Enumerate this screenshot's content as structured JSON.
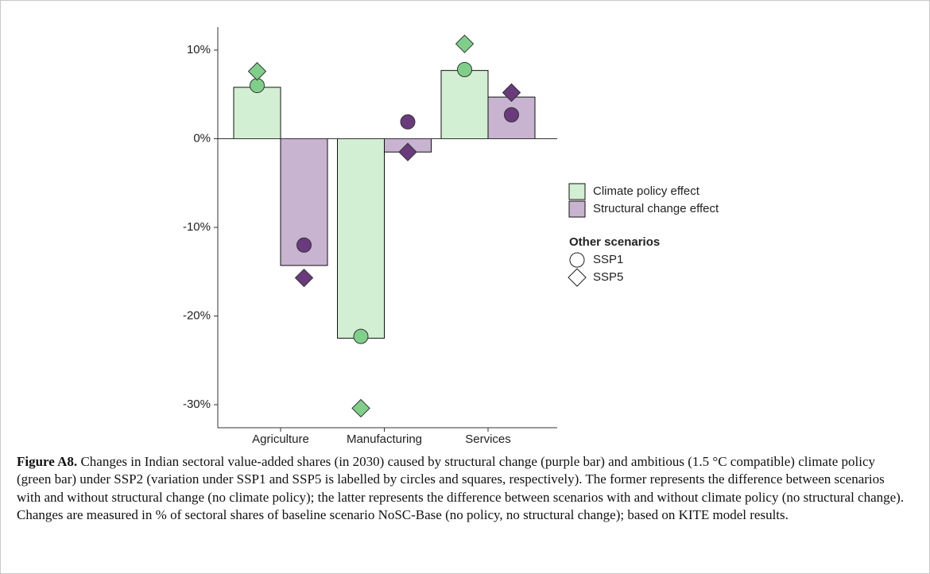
{
  "chart_data": {
    "type": "bar",
    "categories": [
      "Agriculture",
      "Manufacturing",
      "Services"
    ],
    "series": [
      {
        "name": "Climate policy effect",
        "color": "#d3efd3",
        "marker_color": "#7fcf8a",
        "values": [
          5.8,
          -22.5,
          7.7
        ]
      },
      {
        "name": "Structural change effect",
        "color": "#c8b3d1",
        "marker_color": "#6a3a7c",
        "values": [
          -14.3,
          -1.5,
          4.7
        ]
      }
    ],
    "scenarios": [
      {
        "name": "SSP1",
        "marker": "circle",
        "values": [
          [
            6.0,
            -22.3,
            7.8
          ],
          [
            -12.0,
            1.9,
            2.7
          ]
        ]
      },
      {
        "name": "SSP5",
        "marker": "diamond",
        "values": [
          [
            7.6,
            -30.4,
            10.7
          ],
          [
            -15.7,
            -1.5,
            5.2
          ]
        ]
      }
    ],
    "scenario_legend_title": "Other scenarios",
    "ylim": [
      -32.6,
      12.6
    ],
    "yticks": [
      {
        "value": 10,
        "label": "10%"
      },
      {
        "value": 0,
        "label": "0%"
      },
      {
        "value": -10,
        "label": "-10%"
      },
      {
        "value": -20,
        "label": "-20%"
      },
      {
        "value": -30,
        "label": "-30%"
      }
    ],
    "grid": false
  },
  "caption": {
    "label": "Figure A8.",
    "text": "Changes in Indian sectoral value-added shares (in 2030) caused by structural change (purple bar) and ambitious (1.5 °C compatible) climate policy (green bar) under SSP2 (variation under SSP1 and SSP5 is labelled by circles and squares, respectively). The former represents the difference between scenarios with and without structural change (no climate policy); the latter represents the difference between scenarios with and without climate policy (no structural change). Changes are measured in % of sectoral shares of baseline scenario NoSC-Base (no policy, no structural change); based on KITE model results."
  }
}
